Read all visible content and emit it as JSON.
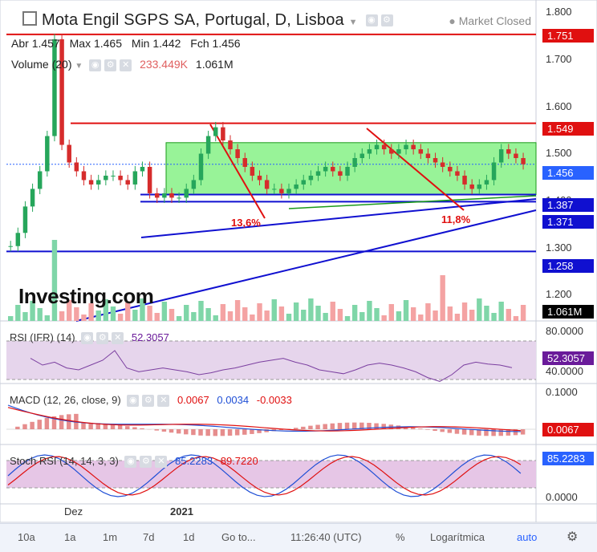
{
  "header": {
    "title": "Mota Engil SGPS SA, Portugal, D, Lisboa",
    "market_status": "Market Closed",
    "ohlc": {
      "abr_label": "Abr",
      "abr": "1.457",
      "max_label": "Max",
      "max": "1.465",
      "min_label": "Min",
      "min": "1.442",
      "fch_label": "Fch",
      "fch": "1.456"
    },
    "volume_label": "Volume (20)",
    "volume_ma": "233.449K",
    "volume_value": "1.061M"
  },
  "price_axis": [
    "1.800",
    "1.700",
    "1.600",
    "1.500",
    "1.400",
    "1.300",
    "1.200"
  ],
  "price_badges": {
    "resistance_top": {
      "value": "1.751",
      "color": "#e01010"
    },
    "resistance": {
      "value": "1.549",
      "color": "#e01010"
    },
    "current": {
      "value": "1.456",
      "color": "#2962ff"
    },
    "support_1": {
      "value": "1.387",
      "color": "#1010d0"
    },
    "support_2": {
      "value": "1.371",
      "color": "#1010d0"
    },
    "support_3": {
      "value": "1.258",
      "color": "#1010d0"
    },
    "volume": {
      "value": "1.061M",
      "color": "#000000"
    }
  },
  "annotations": {
    "drop_1": "13,6%",
    "drop_2": "11,8%"
  },
  "watermark": "Investing.com",
  "rsi": {
    "label": "RSI (IFR) (14)",
    "value": "52.3057",
    "axis": [
      "80.0000",
      "40.0000"
    ],
    "color": "#6a1b9a"
  },
  "macd": {
    "label": "MACD (12, 26, close, 9)",
    "macd": "0.0067",
    "signal": "0.0034",
    "hist": "-0.0033",
    "axis": [
      "0.1000"
    ],
    "badge_value": "0.0067",
    "badge_color": "#e01010"
  },
  "stoch": {
    "label": "Stoch RSI (14, 14, 3, 3)",
    "k": "85.2283",
    "d": "89.7220",
    "axis": [
      "0.0000"
    ],
    "badge_value": "85.2283"
  },
  "x_axis": [
    "Dez",
    "2021"
  ],
  "toolbar": {
    "ranges": [
      "10a",
      "1a",
      "1m",
      "7d",
      "1d"
    ],
    "goto": "Go to...",
    "time": "11:26:40 (UTC)",
    "percent": "%",
    "log": "Logarítmica",
    "auto": "auto"
  },
  "chart_data": {
    "type": "candlestick",
    "title": "Mota Engil SGPS SA, Portugal, D, Lisboa",
    "x_labels": [
      "Dez",
      "2021"
    ],
    "ylim": [
      1.1,
      1.82
    ],
    "horizontal_levels": [
      1.751,
      1.549,
      1.387,
      1.371,
      1.258
    ],
    "last_close": 1.456,
    "rectangle_zone": [
      1.387,
      1.505
    ],
    "close_series": [
      1.27,
      1.3,
      1.36,
      1.4,
      1.44,
      1.52,
      1.74,
      1.5,
      1.46,
      1.44,
      1.42,
      1.41,
      1.42,
      1.43,
      1.43,
      1.42,
      1.41,
      1.44,
      1.45,
      1.39,
      1.38,
      1.39,
      1.38,
      1.38,
      1.4,
      1.42,
      1.48,
      1.52,
      1.54,
      1.51,
      1.49,
      1.47,
      1.45,
      1.43,
      1.42,
      1.4,
      1.4,
      1.39,
      1.4,
      1.41,
      1.42,
      1.43,
      1.44,
      1.45,
      1.44,
      1.43,
      1.45,
      1.47,
      1.48,
      1.49,
      1.5,
      1.49,
      1.48,
      1.49,
      1.5,
      1.49,
      1.48,
      1.47,
      1.46,
      1.45,
      1.44,
      1.43,
      1.41,
      1.4,
      1.41,
      1.42,
      1.46,
      1.49,
      1.48,
      1.47,
      1.456
    ],
    "rsi_series": [
      62,
      55,
      58,
      52,
      50,
      55,
      60,
      70,
      52,
      48,
      50,
      52,
      50,
      48,
      45,
      47,
      50,
      52,
      55,
      58,
      60,
      62,
      58,
      55,
      50,
      48,
      46,
      50,
      55,
      57,
      55,
      52,
      48,
      42,
      38,
      45,
      55,
      58,
      56,
      55,
      52.3
    ]
  }
}
